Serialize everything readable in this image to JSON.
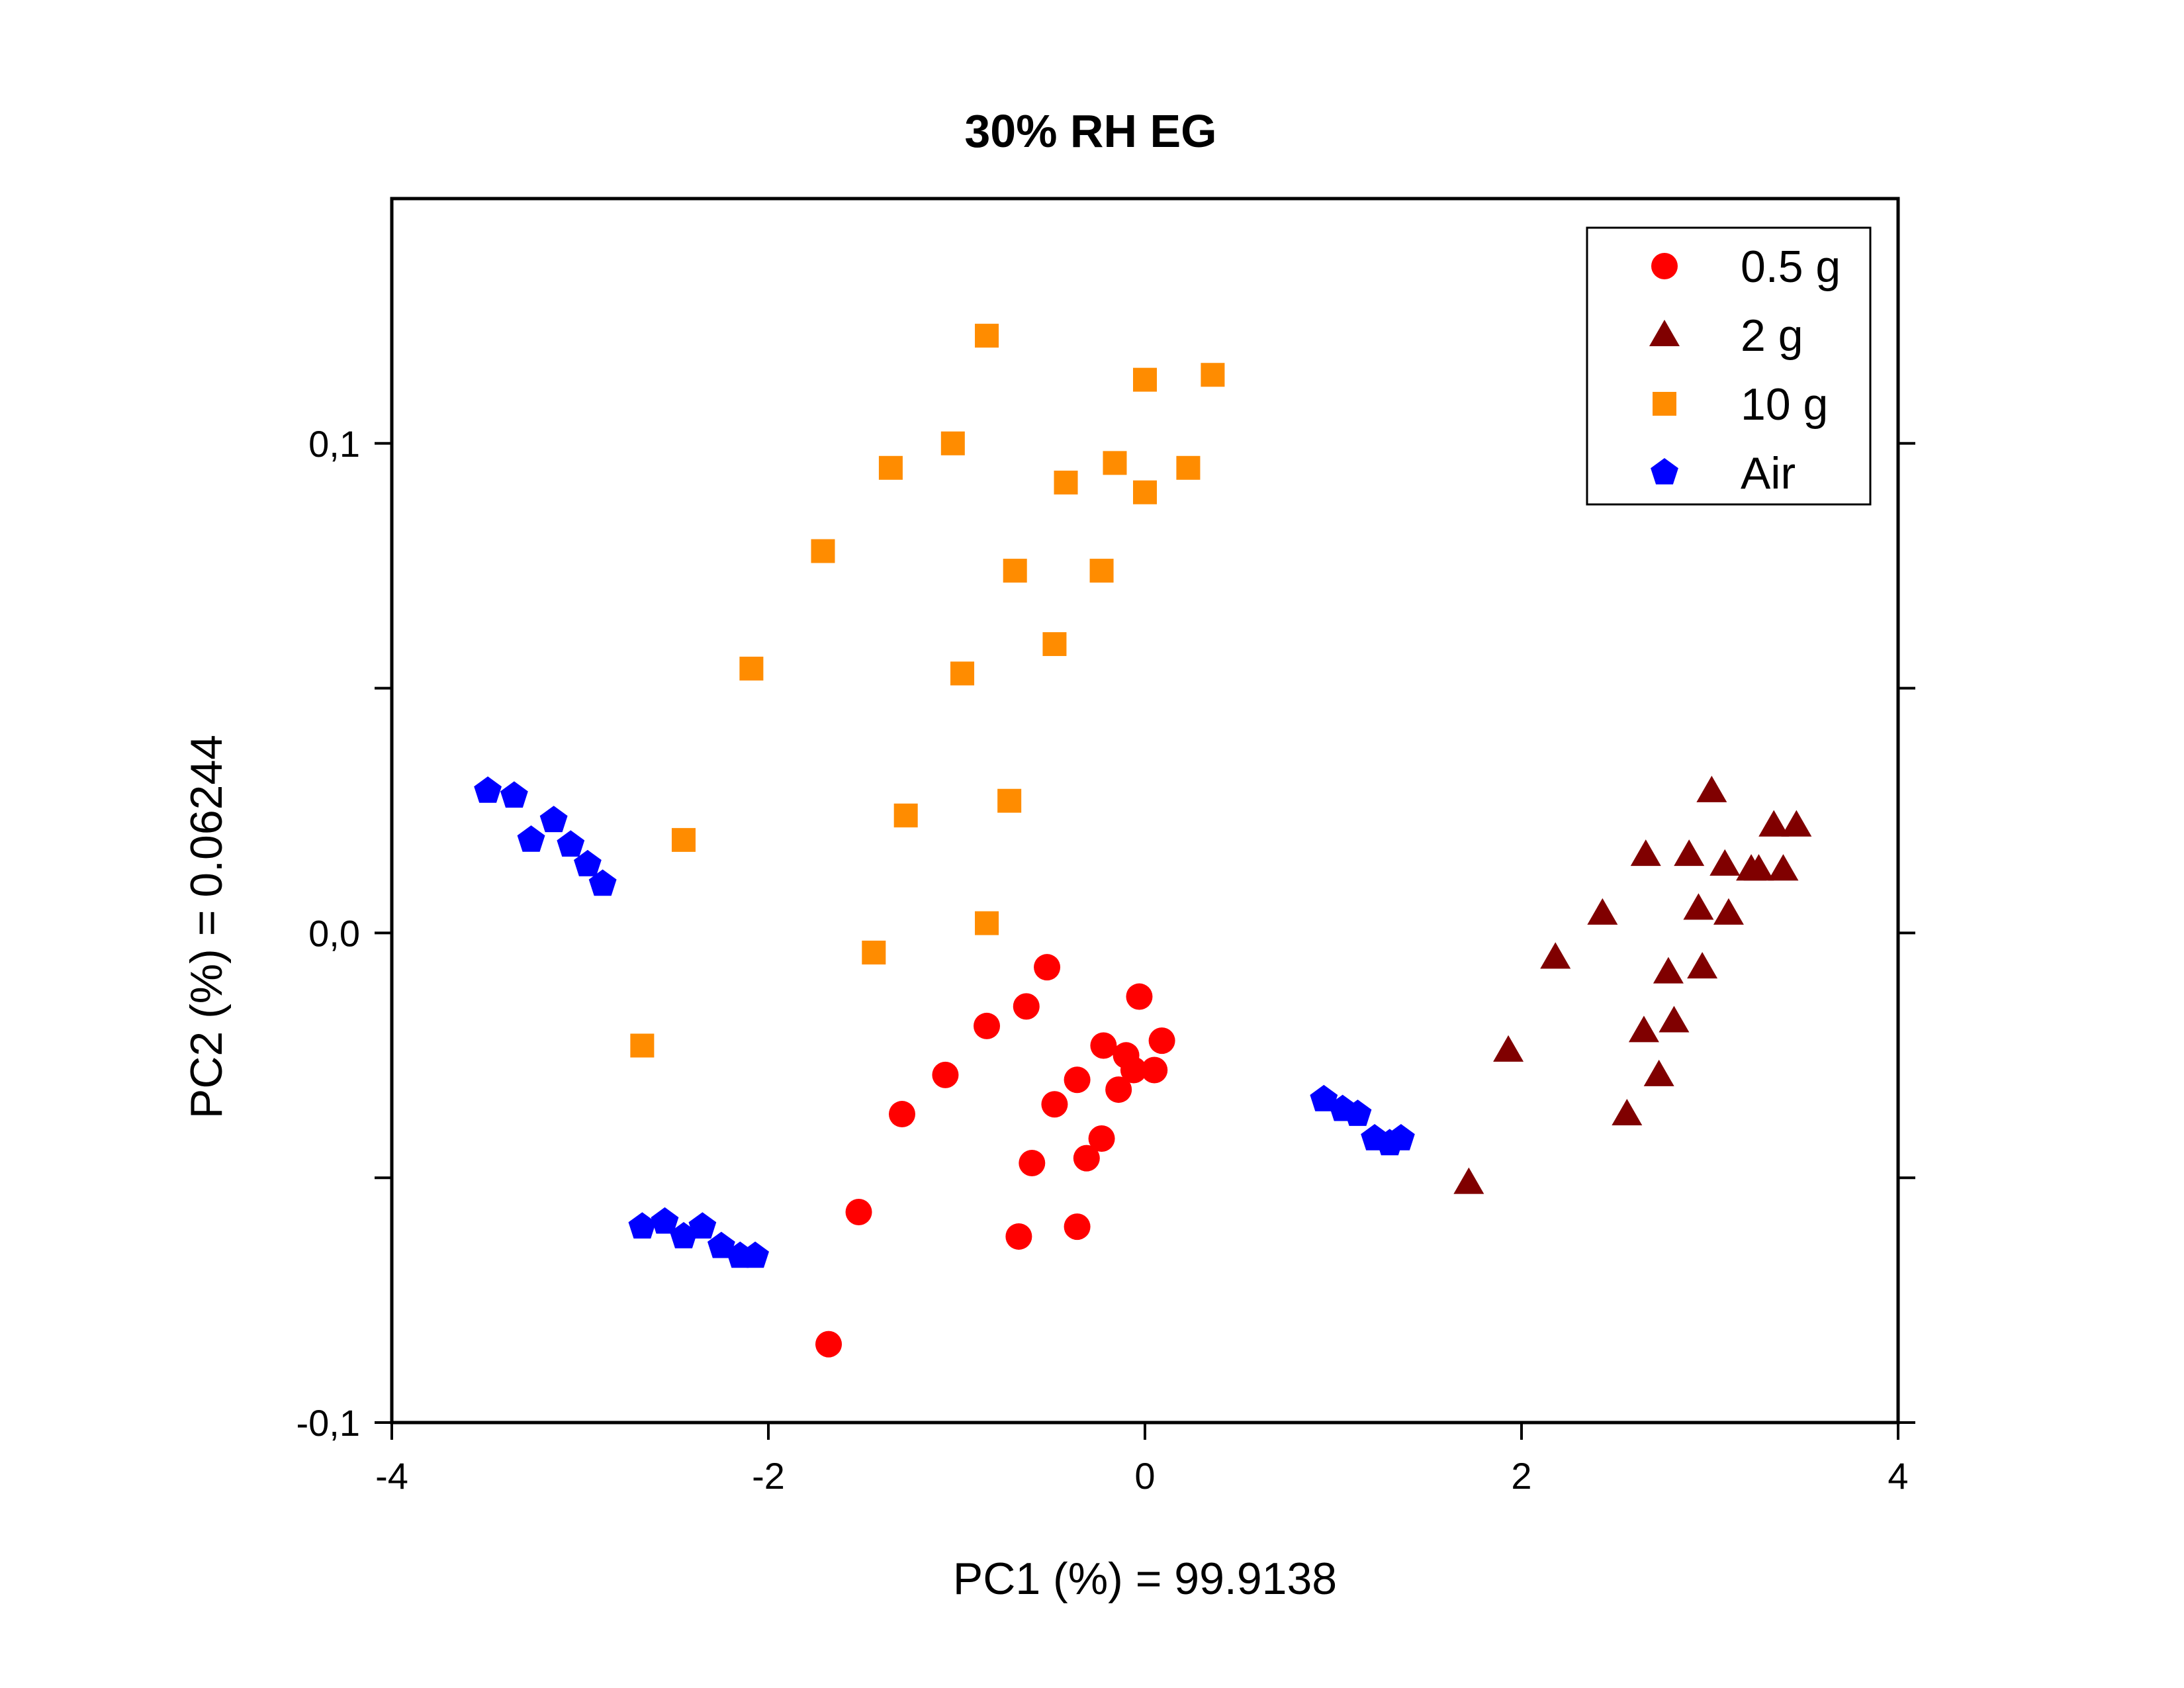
{
  "chart_data": {
    "type": "scatter",
    "title": "30% RH EG",
    "xlabel": "PC1 (%) = 99.9138",
    "ylabel": "PC2 (%) = 0.06244",
    "xlim": [
      -4,
      4
    ],
    "ylim": [
      -0.1,
      0.15
    ],
    "x_ticks": [
      -4,
      -2,
      0,
      2,
      4
    ],
    "x_tick_labels": [
      "-4",
      "-2",
      "0",
      "2",
      "4"
    ],
    "y_ticks": [
      -0.1,
      0.0,
      0.1
    ],
    "y_tick_labels": [
      "-0,1",
      "0,0",
      "0,1"
    ],
    "y_minor_ticks": [
      -0.05,
      0.05
    ],
    "grid": false,
    "legend_position": "top-right",
    "series": [
      {
        "name": "0.5 g",
        "marker": "circle",
        "color": "#ff0000",
        "points": [
          [
            -1.68,
            -0.084
          ],
          [
            -1.52,
            -0.057
          ],
          [
            -1.29,
            -0.037
          ],
          [
            -1.06,
            -0.029
          ],
          [
            -0.84,
            -0.019
          ],
          [
            -0.67,
            -0.062
          ],
          [
            -0.63,
            -0.015
          ],
          [
            -0.6,
            -0.047
          ],
          [
            -0.52,
            -0.007
          ],
          [
            -0.48,
            -0.035
          ],
          [
            -0.36,
            -0.03
          ],
          [
            -0.36,
            -0.06
          ],
          [
            -0.31,
            -0.046
          ],
          [
            -0.23,
            -0.042
          ],
          [
            -0.22,
            -0.023
          ],
          [
            -0.14,
            -0.032
          ],
          [
            -0.1,
            -0.025
          ],
          [
            -0.06,
            -0.028
          ],
          [
            -0.03,
            -0.013
          ],
          [
            0.05,
            -0.028
          ],
          [
            0.09,
            -0.022
          ]
        ]
      },
      {
        "name": "2 g",
        "marker": "triangle",
        "color": "#800000",
        "points": [
          [
            1.72,
            -0.051
          ],
          [
            1.93,
            -0.024
          ],
          [
            2.18,
            -0.005
          ],
          [
            2.43,
            0.004
          ],
          [
            2.56,
            -0.037
          ],
          [
            2.65,
            -0.02
          ],
          [
            2.66,
            0.016
          ],
          [
            2.73,
            -0.029
          ],
          [
            2.78,
            -0.008
          ],
          [
            2.81,
            -0.018
          ],
          [
            2.89,
            0.016
          ],
          [
            2.94,
            0.005
          ],
          [
            2.96,
            -0.007
          ],
          [
            3.01,
            0.029
          ],
          [
            3.08,
            0.014
          ],
          [
            3.1,
            0.004
          ],
          [
            3.22,
            0.013
          ],
          [
            3.26,
            0.013
          ],
          [
            3.34,
            0.022
          ],
          [
            3.39,
            0.013
          ],
          [
            3.46,
            0.022
          ]
        ]
      },
      {
        "name": "10 g",
        "marker": "square",
        "color": "#ff8c00",
        "points": [
          [
            -2.67,
            -0.023
          ],
          [
            -2.45,
            0.019
          ],
          [
            -2.09,
            0.054
          ],
          [
            -1.71,
            0.078
          ],
          [
            -1.44,
            -0.004
          ],
          [
            -1.35,
            0.095
          ],
          [
            -1.27,
            0.024
          ],
          [
            -1.02,
            0.1
          ],
          [
            -0.97,
            0.053
          ],
          [
            -0.84,
            0.122
          ],
          [
            -0.84,
            0.002
          ],
          [
            -0.72,
            0.027
          ],
          [
            -0.69,
            0.074
          ],
          [
            -0.48,
            0.059
          ],
          [
            -0.42,
            0.092
          ],
          [
            -0.23,
            0.074
          ],
          [
            -0.16,
            0.096
          ],
          [
            0.0,
            0.113
          ],
          [
            0.0,
            0.09
          ],
          [
            0.23,
            0.095
          ],
          [
            0.36,
            0.114
          ]
        ]
      },
      {
        "name": "Air",
        "marker": "pentagon",
        "color": "#0000ff",
        "points": [
          [
            -3.49,
            0.029
          ],
          [
            -3.35,
            0.028
          ],
          [
            -3.26,
            0.019
          ],
          [
            -3.14,
            0.023
          ],
          [
            -3.05,
            0.018
          ],
          [
            -2.96,
            0.014
          ],
          [
            -2.88,
            0.01
          ],
          [
            -2.67,
            -0.06
          ],
          [
            -2.55,
            -0.059
          ],
          [
            -2.45,
            -0.062
          ],
          [
            -2.35,
            -0.06
          ],
          [
            -2.25,
            -0.064
          ],
          [
            -2.15,
            -0.066
          ],
          [
            -2.07,
            -0.066
          ],
          [
            0.95,
            -0.034
          ],
          [
            1.05,
            -0.036
          ],
          [
            1.13,
            -0.037
          ],
          [
            1.22,
            -0.042
          ],
          [
            1.3,
            -0.043
          ],
          [
            1.36,
            -0.042
          ]
        ]
      }
    ]
  }
}
